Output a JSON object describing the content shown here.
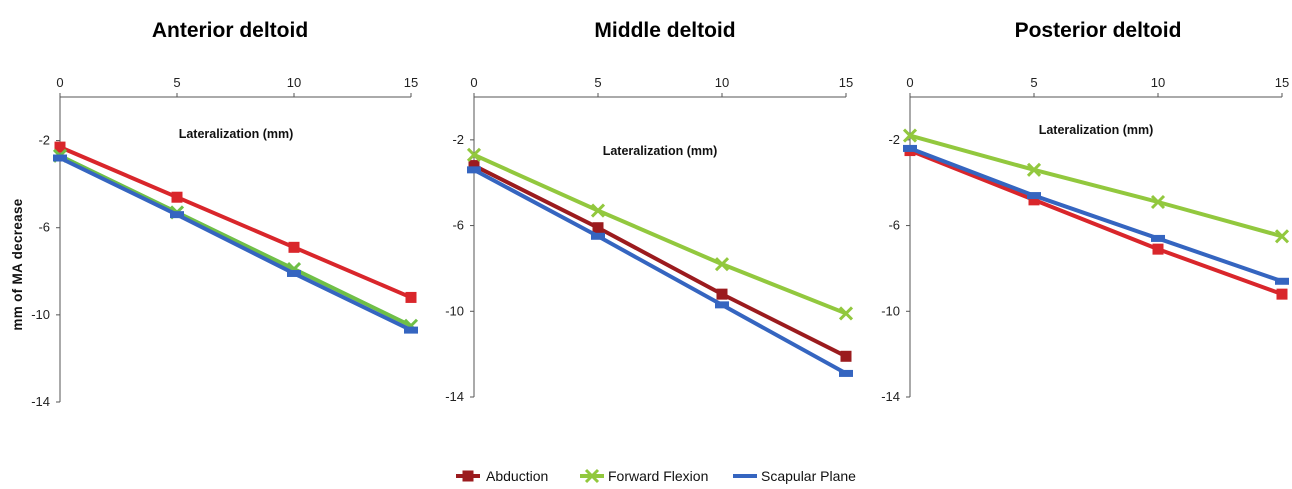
{
  "chart_data": [
    {
      "type": "line",
      "title": "Anterior deltoid",
      "xlabel": "Lateralization (mm)",
      "ylabel": "mm of MA decrease",
      "x": [
        0,
        5,
        10,
        15
      ],
      "xlim": [
        0,
        15
      ],
      "ylim": [
        -14,
        0
      ],
      "yticks": [
        -2,
        -6,
        -10,
        -14
      ],
      "x_axis_position": "top",
      "grid": false,
      "series": [
        {
          "name": "Abduction",
          "values": [
            -2.3,
            -4.6,
            -6.9,
            -9.2
          ]
        },
        {
          "name": "Forward Flexion",
          "values": [
            -2.7,
            -5.3,
            -7.9,
            -10.5
          ]
        },
        {
          "name": "Scapular Plane",
          "values": [
            -2.8,
            -5.4,
            -8.1,
            -10.7
          ]
        }
      ]
    },
    {
      "type": "line",
      "title": "Middle deltoid",
      "xlabel": "Lateralization (mm)",
      "ylabel": "",
      "x": [
        0,
        5,
        10,
        15
      ],
      "xlim": [
        0,
        15
      ],
      "ylim": [
        -14,
        0
      ],
      "yticks": [
        -2,
        -6,
        -10,
        -14
      ],
      "x_axis_position": "top",
      "grid": false,
      "series": [
        {
          "name": "Abduction",
          "values": [
            -3.2,
            -6.1,
            -9.2,
            -12.1
          ]
        },
        {
          "name": "Forward Flexion",
          "values": [
            -2.7,
            -5.3,
            -7.8,
            -10.1
          ]
        },
        {
          "name": "Scapular Plane",
          "values": [
            -3.4,
            -6.5,
            -9.7,
            -12.9
          ]
        }
      ]
    },
    {
      "type": "line",
      "title": "Posterior deltoid",
      "xlabel": "Lateralization (mm)",
      "ylabel": "",
      "x": [
        0,
        5,
        10,
        15
      ],
      "xlim": [
        0,
        15
      ],
      "ylim": [
        -14,
        0
      ],
      "yticks": [
        -2,
        -6,
        -10,
        -14
      ],
      "x_axis_position": "top",
      "grid": false,
      "series": [
        {
          "name": "Abduction",
          "values": [
            -2.5,
            -4.8,
            -7.1,
            -9.2
          ]
        },
        {
          "name": "Forward Flexion",
          "values": [
            -1.8,
            -3.4,
            -4.9,
            -6.5
          ]
        },
        {
          "name": "Scapular Plane",
          "values": [
            -2.4,
            -4.6,
            -6.6,
            -8.6
          ]
        }
      ]
    }
  ],
  "legend": {
    "position": "bottom-center",
    "items": [
      {
        "name": "Abduction",
        "color": "#9b1b1e",
        "marker": "square"
      },
      {
        "name": "Forward Flexion",
        "color": "#92c83e",
        "marker": "x"
      },
      {
        "name": "Scapular Plane",
        "color": "#3565c0",
        "marker": "bar"
      }
    ]
  },
  "series_styles": {
    "Anterior deltoid": {
      "Abduction": "#d9262b",
      "Forward Flexion": "#6fbf47",
      "Scapular Plane": "#3565c0"
    },
    "Middle deltoid": {
      "Abduction": "#9b1b1e",
      "Forward Flexion": "#92c83e",
      "Scapular Plane": "#3565c0"
    },
    "Posterior deltoid": {
      "Abduction": "#d9262b",
      "Forward Flexion": "#92c83e",
      "Scapular Plane": "#3565c0"
    }
  }
}
